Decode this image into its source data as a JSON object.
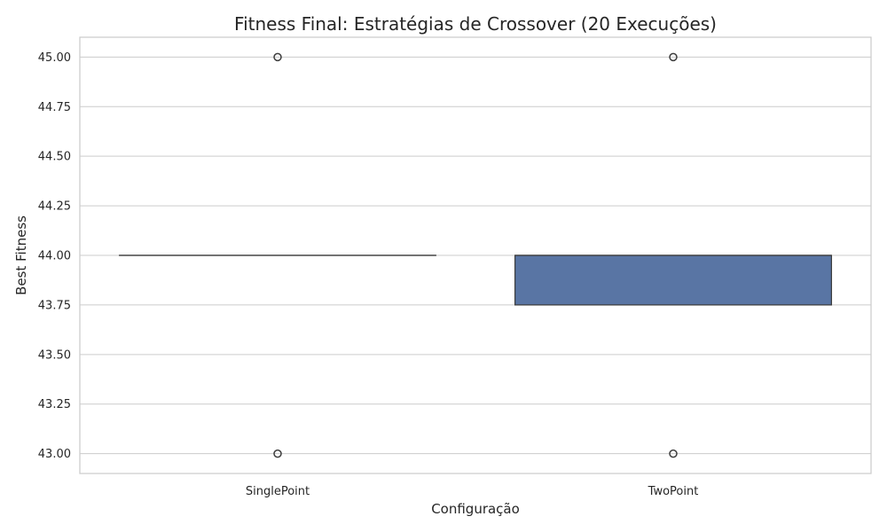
{
  "chart_data": {
    "type": "box",
    "title": "Fitness Final: Estratégias de Crossover (20 Execuções)",
    "xlabel": "Configuração",
    "ylabel": "Best Fitness",
    "categories": [
      "SinglePoint",
      "TwoPoint"
    ],
    "ylim": [
      42.9,
      45.1
    ],
    "yticks": [
      43.0,
      43.25,
      43.5,
      43.75,
      44.0,
      44.25,
      44.5,
      44.75,
      45.0
    ],
    "ytick_labels": [
      "43.00",
      "43.25",
      "43.50",
      "43.75",
      "44.00",
      "44.25",
      "44.50",
      "44.75",
      "45.00"
    ],
    "grid": true,
    "box_color": "#5975a4",
    "edge_color": "#3d3d3d",
    "boxes": [
      {
        "category": "SinglePoint",
        "q1": 44.0,
        "median": 44.0,
        "q3": 44.0,
        "whisker_low": 44.0,
        "whisker_high": 44.0,
        "outliers": [
          45.0,
          43.0
        ]
      },
      {
        "category": "TwoPoint",
        "q1": 43.75,
        "median": 44.0,
        "q3": 44.0,
        "whisker_low": 43.75,
        "whisker_high": 44.0,
        "outliers": [
          45.0,
          43.0
        ]
      }
    ]
  }
}
